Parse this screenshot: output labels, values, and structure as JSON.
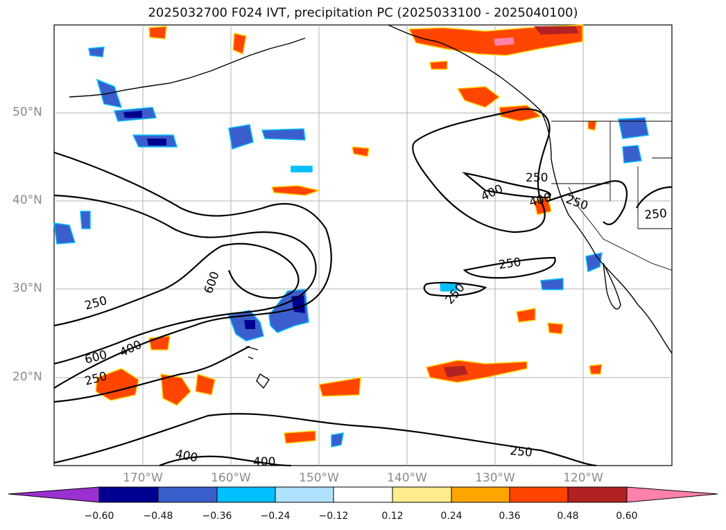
{
  "title": "2025032700 F024 IVT, precipitation PC (2025033100 - 2025040100)",
  "lat_labels": [
    "50°N",
    "40°N",
    "30°N",
    "20°N"
  ],
  "lon_labels": [
    "170°W",
    "160°W",
    "150°W",
    "140°W",
    "130°W",
    "120°W"
  ],
  "contour_labels": [
    "250",
    "600",
    "400",
    "250",
    "400",
    "250",
    "250",
    "400",
    "250",
    "250",
    "250",
    "600",
    "400",
    "400",
    "250"
  ],
  "colorbar": {
    "ticks": [
      "−0.60",
      "−0.48",
      "−0.36",
      "−0.24",
      "−0.12",
      "0.12",
      "0.24",
      "0.36",
      "0.48",
      "0.60"
    ],
    "colors": [
      "#9b30d0",
      "#000090",
      "#3a5fcd",
      "#00bfff",
      "#b0e2ff",
      "#ffffff",
      "#ffec8b",
      "#ffa500",
      "#ff4500",
      "#b22222",
      "#ff82ab"
    ]
  }
}
